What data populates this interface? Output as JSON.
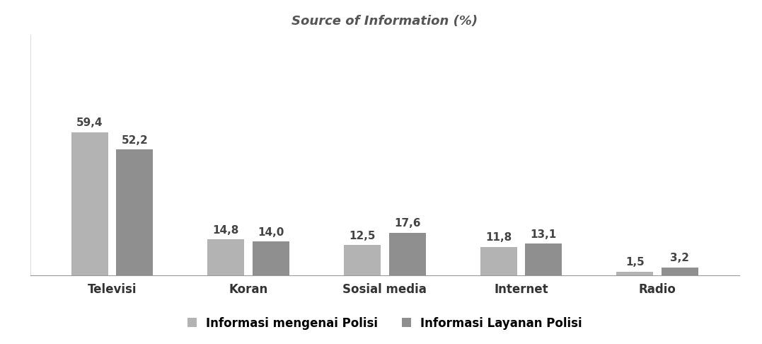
{
  "chart_data": {
    "type": "bar",
    "title": "Source of Information (%)",
    "categories": [
      "Televisi",
      "Koran",
      "Sosial media",
      "Internet",
      "Radio"
    ],
    "series": [
      {
        "name": "Informasi mengenai Polisi",
        "color": "#b3b3b3",
        "values": [
          59.4,
          14.8,
          12.5,
          11.8,
          1.5
        ],
        "value_labels": [
          "59,4",
          "14,8",
          "12,5",
          "11,8",
          "1,5"
        ]
      },
      {
        "name": "Informasi Layanan Polisi",
        "color": "#8f8f8f",
        "values": [
          52.2,
          14.0,
          17.6,
          13.1,
          3.2
        ],
        "value_labels": [
          "52,2",
          "14,0",
          "17,6",
          "13,1",
          "3,2"
        ]
      }
    ],
    "ylim": [
      0,
      100
    ],
    "data_labels": true,
    "tick_labels": "x",
    "legend": "lower center",
    "grid": false
  }
}
